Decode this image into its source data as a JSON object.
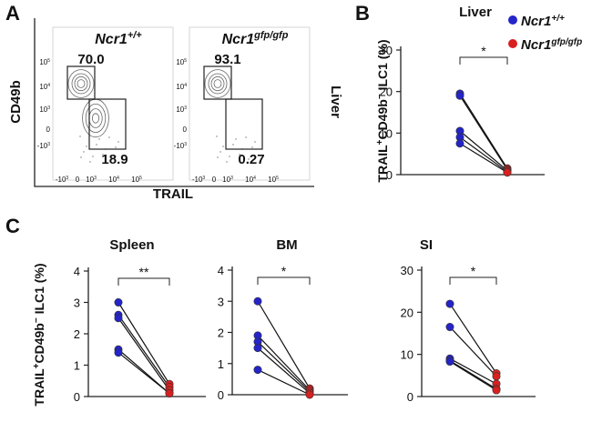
{
  "panel_labels": [
    "A",
    "B",
    "C"
  ],
  "flow": {
    "y_label": "CD49b",
    "x_label": "TRAIL",
    "side_label": "Liver",
    "yticks": [
      {
        "base": "10",
        "exp": "5"
      },
      {
        "base": "10",
        "exp": "4"
      },
      {
        "base": "10",
        "exp": "3"
      },
      {
        "base": "0",
        "exp": ""
      },
      {
        "base": "-10",
        "exp": "3"
      }
    ],
    "xticks": [
      {
        "base": "-10",
        "exp": "3"
      },
      {
        "base": "0",
        "exp": ""
      },
      {
        "base": "10",
        "exp": "3"
      },
      {
        "base": "10",
        "exp": "4"
      },
      {
        "base": "10",
        "exp": "5"
      }
    ],
    "plots": [
      {
        "title": "Ncr1",
        "title_sup": "+/+",
        "color": "#1a1ab8",
        "gates": [
          "70.0",
          "18.9"
        ]
      },
      {
        "title": "Ncr1",
        "title_sup": "gfp/gfp",
        "color": "#d01818",
        "gates": [
          "93.1",
          "0.27"
        ]
      }
    ]
  },
  "y_label": {
    "a": "TRAIL",
    "sup1": "+",
    "b": "CD49b",
    "sup2": "−",
    "c": " ILC1 (%)"
  },
  "chart_data": [
    {
      "type": "paired",
      "title": "Liver",
      "ylim": [
        0,
        30
      ],
      "yticks": [
        0,
        10,
        20,
        30
      ],
      "significance": "*",
      "series": [
        {
          "name": "Ncr1",
          "name_sup": "+/+",
          "color": "#2424c8",
          "values": [
            19.5,
            19,
            10.5,
            9,
            7.5
          ]
        },
        {
          "name": "Ncr1",
          "name_sup": "gfp/gfp",
          "color": "#d82020",
          "values": [
            1.5,
            1.2,
            1,
            0.7,
            0.5
          ]
        }
      ]
    },
    {
      "type": "paired",
      "title": "Spleen",
      "ylim": [
        0,
        4
      ],
      "yticks": [
        0,
        1,
        2,
        3,
        4
      ],
      "significance": "**",
      "series": [
        {
          "color": "#2424c8",
          "values": [
            3.0,
            2.6,
            2.5,
            1.5,
            1.4
          ]
        },
        {
          "color": "#d82020",
          "values": [
            0.4,
            0.3,
            0.2,
            0.1,
            0.1
          ]
        }
      ]
    },
    {
      "type": "paired",
      "title": "BM",
      "ylim": [
        0,
        4
      ],
      "yticks": [
        0,
        1,
        2,
        3,
        4
      ],
      "significance": "*",
      "series": [
        {
          "color": "#2424c8",
          "values": [
            3.0,
            1.9,
            1.7,
            1.5,
            0.8
          ]
        },
        {
          "color": "#d82020",
          "values": [
            0.2,
            0.15,
            0.1,
            0.05,
            0
          ]
        }
      ]
    },
    {
      "type": "paired",
      "title": "SI",
      "ylim": [
        0,
        30
      ],
      "yticks": [
        0,
        10,
        20,
        30
      ],
      "significance": "*",
      "series": [
        {
          "color": "#2424c8",
          "values": [
            22,
            16.5,
            9,
            8.5,
            8.3
          ]
        },
        {
          "color": "#d82020",
          "values": [
            5.5,
            4.8,
            3.0,
            1.8,
            1.5
          ]
        }
      ]
    }
  ]
}
